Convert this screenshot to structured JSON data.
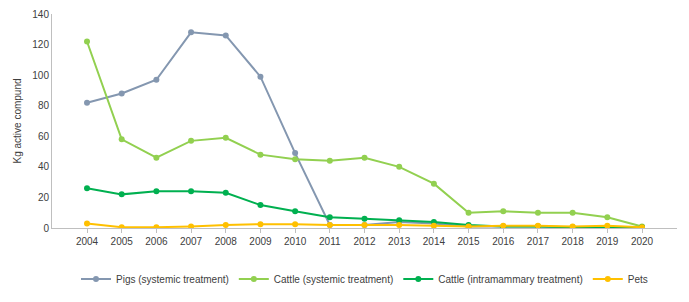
{
  "chart_data": {
    "type": "line",
    "y_label": "Kg active compund",
    "categories": [
      "2004",
      "2005",
      "2006",
      "2007",
      "2008",
      "2009",
      "2010",
      "2011",
      "2012",
      "2013",
      "2014",
      "2015",
      "2016",
      "2017",
      "2018",
      "2019",
      "2020"
    ],
    "series": [
      {
        "name": "Pigs (systemic treatment)",
        "color": "#8497b0",
        "marker": "circle",
        "values": [
          82,
          88,
          97,
          128,
          126,
          99,
          49,
          2,
          2,
          4,
          3,
          1,
          1,
          1,
          0.5,
          0.5,
          0.5
        ]
      },
      {
        "name": "Cattle (systemic treatment)",
        "color": "#92d050",
        "marker": "circle",
        "values": [
          122,
          58,
          46,
          57,
          59,
          48,
          45,
          44,
          46,
          40,
          29,
          10,
          11,
          10,
          10,
          7,
          1
        ]
      },
      {
        "name": "Cattle (intramammary treatment)",
        "color": "#00b050",
        "marker": "circle",
        "values": [
          26,
          22,
          24,
          24,
          23,
          15,
          11,
          7,
          6,
          5,
          4,
          2,
          1,
          1,
          0.5,
          0.5,
          0.5
        ]
      },
      {
        "name": "Pets",
        "color": "#ffc000",
        "marker": "circle",
        "values": [
          3,
          0.5,
          0.5,
          1,
          2,
          2.5,
          2.5,
          2,
          2,
          2,
          1.5,
          1,
          1.5,
          1.5,
          1,
          1.5,
          0.5
        ]
      }
    ],
    "ylim": [
      0,
      140
    ],
    "yticks": [
      0,
      20,
      40,
      60,
      80,
      100,
      120,
      140
    ],
    "grid": false,
    "legend": "bottom"
  }
}
